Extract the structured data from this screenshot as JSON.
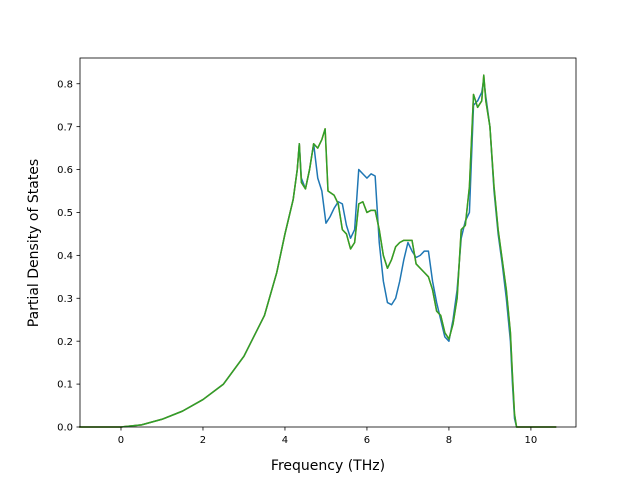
{
  "chart_data": {
    "type": "line",
    "xlabel": "Frequency (THz)",
    "ylabel": "Partial Density of States",
    "xlim": [
      -1.0,
      11.1
    ],
    "ylim": [
      0.0,
      0.86
    ],
    "grid": false,
    "x_ticks": [
      0,
      2,
      4,
      6,
      8,
      10
    ],
    "x_tick_labels": [
      "0",
      "2",
      "4",
      "6",
      "8",
      "10"
    ],
    "y_ticks": [
      0.0,
      0.1,
      0.2,
      0.3,
      0.4,
      0.5,
      0.6,
      0.7,
      0.8
    ],
    "y_tick_labels": [
      "0.0",
      "0.1",
      "0.2",
      "0.3",
      "0.4",
      "0.5",
      "0.6",
      "0.7",
      "0.8"
    ],
    "series": [
      {
        "color": "#1f77b4",
        "points": [
          [
            -1.0,
            0.0
          ],
          [
            0.0,
            0.0
          ],
          [
            0.5,
            0.005
          ],
          [
            1.0,
            0.018
          ],
          [
            1.5,
            0.037
          ],
          [
            2.0,
            0.064
          ],
          [
            2.5,
            0.1
          ],
          [
            3.0,
            0.165
          ],
          [
            3.5,
            0.26
          ],
          [
            3.8,
            0.36
          ],
          [
            4.0,
            0.45
          ],
          [
            4.2,
            0.53
          ],
          [
            4.3,
            0.6
          ],
          [
            4.35,
            0.66
          ],
          [
            4.4,
            0.58
          ],
          [
            4.5,
            0.555
          ],
          [
            4.6,
            0.6
          ],
          [
            4.7,
            0.66
          ],
          [
            4.8,
            0.58
          ],
          [
            4.9,
            0.55
          ],
          [
            5.0,
            0.475
          ],
          [
            5.1,
            0.49
          ],
          [
            5.2,
            0.51
          ],
          [
            5.3,
            0.525
          ],
          [
            5.4,
            0.52
          ],
          [
            5.5,
            0.47
          ],
          [
            5.6,
            0.44
          ],
          [
            5.7,
            0.46
          ],
          [
            5.8,
            0.6
          ],
          [
            5.9,
            0.59
          ],
          [
            6.0,
            0.58
          ],
          [
            6.1,
            0.59
          ],
          [
            6.2,
            0.585
          ],
          [
            6.3,
            0.43
          ],
          [
            6.4,
            0.34
          ],
          [
            6.5,
            0.29
          ],
          [
            6.6,
            0.285
          ],
          [
            6.7,
            0.3
          ],
          [
            6.8,
            0.34
          ],
          [
            6.9,
            0.39
          ],
          [
            7.0,
            0.43
          ],
          [
            7.1,
            0.41
          ],
          [
            7.2,
            0.395
          ],
          [
            7.3,
            0.4
          ],
          [
            7.4,
            0.41
          ],
          [
            7.5,
            0.41
          ],
          [
            7.6,
            0.34
          ],
          [
            7.7,
            0.29
          ],
          [
            7.8,
            0.25
          ],
          [
            7.9,
            0.21
          ],
          [
            8.0,
            0.2
          ],
          [
            8.1,
            0.25
          ],
          [
            8.2,
            0.32
          ],
          [
            8.3,
            0.44
          ],
          [
            8.4,
            0.48
          ],
          [
            8.5,
            0.5
          ],
          [
            8.6,
            0.75
          ],
          [
            8.7,
            0.76
          ],
          [
            8.8,
            0.78
          ],
          [
            8.85,
            0.81
          ],
          [
            8.9,
            0.77
          ],
          [
            9.0,
            0.7
          ],
          [
            9.1,
            0.55
          ],
          [
            9.2,
            0.45
          ],
          [
            9.3,
            0.38
          ],
          [
            9.4,
            0.3
          ],
          [
            9.5,
            0.2
          ],
          [
            9.55,
            0.1
          ],
          [
            9.6,
            0.02
          ],
          [
            9.65,
            0.0
          ],
          [
            10.6,
            0.0
          ]
        ]
      },
      {
        "color": "#ff7f0e",
        "points": [
          [
            -1.0,
            0.0
          ],
          [
            0.0,
            0.0
          ],
          [
            0.5,
            0.005
          ],
          [
            1.0,
            0.018
          ],
          [
            1.5,
            0.037
          ],
          [
            2.0,
            0.064
          ],
          [
            2.5,
            0.1
          ],
          [
            3.0,
            0.165
          ],
          [
            3.5,
            0.26
          ],
          [
            3.8,
            0.36
          ],
          [
            4.0,
            0.45
          ],
          [
            4.2,
            0.53
          ],
          [
            4.3,
            0.6
          ],
          [
            4.35,
            0.66
          ],
          [
            4.4,
            0.57
          ],
          [
            4.5,
            0.555
          ],
          [
            4.6,
            0.6
          ],
          [
            4.7,
            0.66
          ],
          [
            4.8,
            0.65
          ],
          [
            4.9,
            0.67
          ],
          [
            4.98,
            0.695
          ],
          [
            5.05,
            0.55
          ],
          [
            5.2,
            0.54
          ],
          [
            5.3,
            0.52
          ],
          [
            5.4,
            0.46
          ],
          [
            5.5,
            0.45
          ],
          [
            5.6,
            0.415
          ],
          [
            5.7,
            0.43
          ],
          [
            5.8,
            0.52
          ],
          [
            5.9,
            0.525
          ],
          [
            6.0,
            0.5
          ],
          [
            6.1,
            0.505
          ],
          [
            6.2,
            0.505
          ],
          [
            6.3,
            0.46
          ],
          [
            6.4,
            0.4
          ],
          [
            6.5,
            0.37
          ],
          [
            6.6,
            0.39
          ],
          [
            6.7,
            0.42
          ],
          [
            6.8,
            0.43
          ],
          [
            6.9,
            0.435
          ],
          [
            7.0,
            0.435
          ],
          [
            7.1,
            0.435
          ],
          [
            7.2,
            0.38
          ],
          [
            7.3,
            0.37
          ],
          [
            7.4,
            0.36
          ],
          [
            7.5,
            0.35
          ],
          [
            7.6,
            0.32
          ],
          [
            7.7,
            0.27
          ],
          [
            7.8,
            0.26
          ],
          [
            7.9,
            0.22
          ],
          [
            8.0,
            0.205
          ],
          [
            8.1,
            0.24
          ],
          [
            8.2,
            0.3
          ],
          [
            8.3,
            0.46
          ],
          [
            8.4,
            0.47
          ],
          [
            8.5,
            0.56
          ],
          [
            8.6,
            0.775
          ],
          [
            8.7,
            0.745
          ],
          [
            8.8,
            0.76
          ],
          [
            8.85,
            0.82
          ],
          [
            8.9,
            0.76
          ],
          [
            9.0,
            0.7
          ],
          [
            9.1,
            0.56
          ],
          [
            9.2,
            0.46
          ],
          [
            9.3,
            0.39
          ],
          [
            9.4,
            0.32
          ],
          [
            9.5,
            0.22
          ],
          [
            9.55,
            0.12
          ],
          [
            9.6,
            0.03
          ],
          [
            9.65,
            0.0
          ],
          [
            10.6,
            0.0
          ]
        ]
      },
      {
        "color": "#2ca02c",
        "points": [
          [
            -1.0,
            0.0
          ],
          [
            0.0,
            0.0
          ],
          [
            0.5,
            0.005
          ],
          [
            1.0,
            0.018
          ],
          [
            1.5,
            0.037
          ],
          [
            2.0,
            0.064
          ],
          [
            2.5,
            0.1
          ],
          [
            3.0,
            0.165
          ],
          [
            3.5,
            0.26
          ],
          [
            3.8,
            0.36
          ],
          [
            4.0,
            0.45
          ],
          [
            4.2,
            0.53
          ],
          [
            4.3,
            0.6
          ],
          [
            4.35,
            0.66
          ],
          [
            4.4,
            0.57
          ],
          [
            4.5,
            0.555
          ],
          [
            4.6,
            0.6
          ],
          [
            4.7,
            0.66
          ],
          [
            4.8,
            0.65
          ],
          [
            4.9,
            0.67
          ],
          [
            4.98,
            0.695
          ],
          [
            5.05,
            0.55
          ],
          [
            5.2,
            0.54
          ],
          [
            5.3,
            0.52
          ],
          [
            5.4,
            0.46
          ],
          [
            5.5,
            0.45
          ],
          [
            5.6,
            0.415
          ],
          [
            5.7,
            0.43
          ],
          [
            5.8,
            0.52
          ],
          [
            5.9,
            0.525
          ],
          [
            6.0,
            0.5
          ],
          [
            6.1,
            0.505
          ],
          [
            6.2,
            0.505
          ],
          [
            6.3,
            0.46
          ],
          [
            6.4,
            0.4
          ],
          [
            6.5,
            0.37
          ],
          [
            6.6,
            0.39
          ],
          [
            6.7,
            0.42
          ],
          [
            6.8,
            0.43
          ],
          [
            6.9,
            0.435
          ],
          [
            7.0,
            0.435
          ],
          [
            7.1,
            0.435
          ],
          [
            7.2,
            0.38
          ],
          [
            7.3,
            0.37
          ],
          [
            7.4,
            0.36
          ],
          [
            7.5,
            0.35
          ],
          [
            7.6,
            0.32
          ],
          [
            7.7,
            0.27
          ],
          [
            7.8,
            0.26
          ],
          [
            7.9,
            0.22
          ],
          [
            8.0,
            0.205
          ],
          [
            8.1,
            0.24
          ],
          [
            8.2,
            0.3
          ],
          [
            8.3,
            0.46
          ],
          [
            8.4,
            0.47
          ],
          [
            8.5,
            0.56
          ],
          [
            8.6,
            0.775
          ],
          [
            8.7,
            0.745
          ],
          [
            8.8,
            0.76
          ],
          [
            8.85,
            0.82
          ],
          [
            8.9,
            0.76
          ],
          [
            9.0,
            0.7
          ],
          [
            9.1,
            0.56
          ],
          [
            9.2,
            0.46
          ],
          [
            9.3,
            0.39
          ],
          [
            9.4,
            0.32
          ],
          [
            9.5,
            0.22
          ],
          [
            9.55,
            0.12
          ],
          [
            9.6,
            0.03
          ],
          [
            9.65,
            0.0
          ],
          [
            10.6,
            0.0
          ]
        ]
      }
    ]
  }
}
